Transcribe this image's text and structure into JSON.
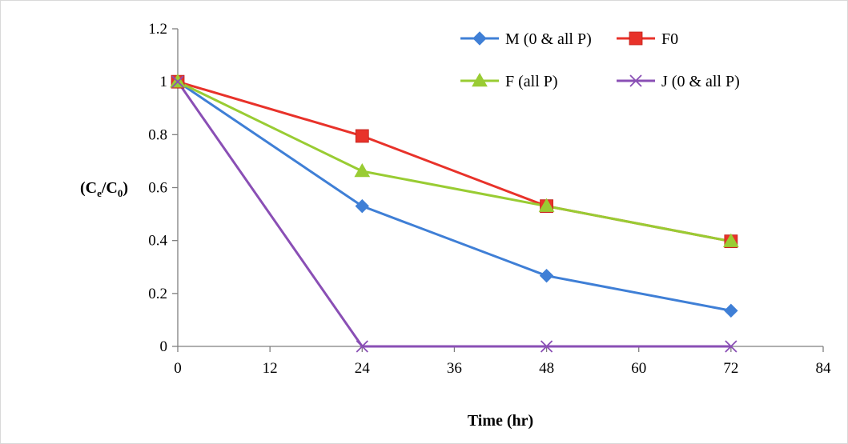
{
  "chart_data": {
    "type": "line",
    "title": "",
    "xlabel": "Time (hr)",
    "ylabel": {
      "base1": "(C",
      "sub1": "e",
      "mid": "/C",
      "sub2": "0",
      "end": ")"
    },
    "xlim": [
      0,
      84
    ],
    "ylim": [
      0,
      1.2
    ],
    "xticks": [
      "0",
      "12",
      "24",
      "36",
      "48",
      "60",
      "72",
      "84"
    ],
    "yticks": [
      "0",
      "0.2",
      "0.4",
      "0.6",
      "0.8",
      "1",
      "1.2"
    ],
    "grid": false,
    "legend": "top-right",
    "x": [
      0,
      24,
      48,
      72
    ],
    "series": [
      {
        "name": "M (0 & all P)",
        "color": "#3f7fd6",
        "marker": "diamond",
        "values": [
          1.0,
          0.53,
          0.267,
          0.135
        ]
      },
      {
        "name": "F0",
        "color": "#e8322a",
        "marker": "square",
        "values": [
          1.0,
          0.795,
          0.53,
          0.397
        ]
      },
      {
        "name": "F (all P)",
        "color": "#99cc33",
        "marker": "triangle",
        "values": [
          1.0,
          0.662,
          0.53,
          0.397
        ]
      },
      {
        "name": "J (0 & all P)",
        "color": "#8a4fb5",
        "marker": "x",
        "values": [
          1.0,
          0.0,
          0.0,
          0.0
        ]
      }
    ]
  }
}
